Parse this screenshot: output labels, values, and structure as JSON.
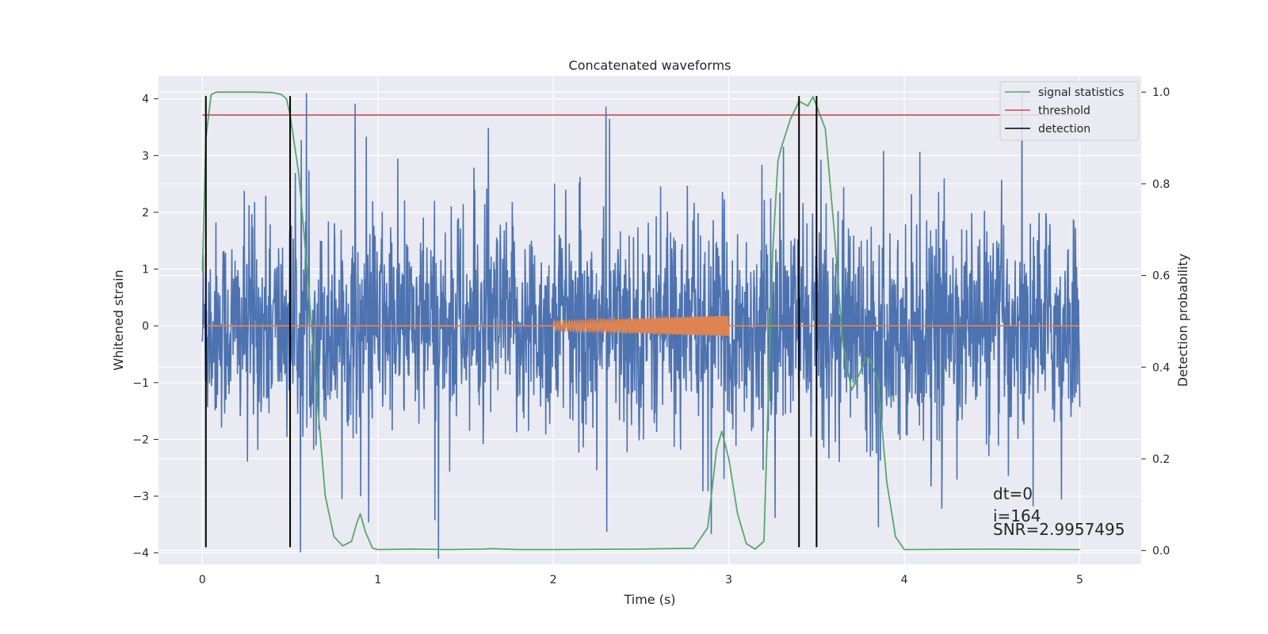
{
  "chart_data": {
    "type": "line",
    "title": "Concatenated waveforms",
    "xlabel": "Time (s)",
    "ylabel": "Whitened strain",
    "y2label": "Detection probability",
    "xlim": [
      -0.25,
      5.35
    ],
    "ylim": [
      -4.2,
      4.4
    ],
    "y2lim": [
      -0.03,
      1.035
    ],
    "x_ticks": [
      0,
      1,
      2,
      3,
      4,
      5
    ],
    "y_ticks": [
      -4,
      -3,
      -2,
      -1,
      0,
      1,
      2,
      3,
      4
    ],
    "y2_ticks": [
      0.0,
      0.2,
      0.4,
      0.6,
      0.8,
      1.0
    ],
    "y2_tick_labels": [
      "0.0",
      "0.2",
      "0.4",
      "0.6",
      "0.8",
      "1.0"
    ],
    "grid": true,
    "legend_position": "top-right",
    "colors": {
      "background": "#eaeaf2",
      "grid": "#ffffff",
      "strain": "#4c72b0",
      "injection": "#dd8452",
      "signal_statistics": "#55a868",
      "threshold": "#c44e52",
      "detection": "#000000"
    },
    "series": [
      {
        "name": "",
        "role": "whitened-strain",
        "description_range": {
          "x": [
            0,
            5
          ],
          "y": [
            -4.1,
            4.1
          ]
        }
      },
      {
        "name": "",
        "role": "injected-waveform",
        "x_range": [
          2.0,
          3.0
        ],
        "amplitude_start": 0.08,
        "amplitude_end": 0.18
      },
      {
        "name": "signal statistics",
        "axis": "right",
        "x": [
          0.0,
          0.02,
          0.05,
          0.08,
          0.1,
          0.2,
          0.3,
          0.4,
          0.45,
          0.48,
          0.5,
          0.55,
          0.6,
          0.65,
          0.7,
          0.75,
          0.8,
          0.85,
          0.88,
          0.9,
          0.93,
          0.97,
          1.0,
          1.2,
          1.4,
          1.6,
          1.65,
          1.8,
          2.0,
          2.5,
          2.8,
          2.88,
          2.93,
          2.96,
          3.0,
          3.05,
          3.1,
          3.15,
          3.2,
          3.25,
          3.28,
          3.3,
          3.35,
          3.4,
          3.45,
          3.48,
          3.5,
          3.55,
          3.6,
          3.65,
          3.7,
          3.75,
          3.78,
          3.8,
          3.85,
          3.9,
          3.95,
          4.0,
          4.5,
          5.0
        ],
        "y": [
          0.61,
          0.9,
          0.995,
          1.0,
          1.0,
          1.0,
          1.0,
          0.999,
          0.995,
          0.985,
          0.95,
          0.82,
          0.6,
          0.35,
          0.12,
          0.03,
          0.01,
          0.02,
          0.06,
          0.08,
          0.04,
          0.005,
          0.002,
          0.003,
          0.002,
          0.003,
          0.004,
          0.002,
          0.002,
          0.003,
          0.005,
          0.05,
          0.22,
          0.26,
          0.2,
          0.08,
          0.015,
          0.003,
          0.02,
          0.65,
          0.85,
          0.88,
          0.94,
          0.98,
          0.97,
          0.99,
          0.97,
          0.92,
          0.7,
          0.45,
          0.35,
          0.39,
          0.42,
          0.42,
          0.37,
          0.15,
          0.03,
          0.002,
          0.003,
          0.002
        ]
      },
      {
        "name": "threshold",
        "axis": "right",
        "x": [
          0,
          5
        ],
        "y": [
          0.95,
          0.95
        ]
      },
      {
        "name": "detection",
        "axis": "left",
        "type": "vlines",
        "x": [
          0.02,
          0.5,
          3.4,
          3.5
        ],
        "ymin": -3.9,
        "ymax": 4.05
      }
    ],
    "legend": [
      "signal statistics",
      "threshold",
      "detection"
    ],
    "annotations": [
      "dt=0",
      "i=164",
      "SNR=2.9957495"
    ]
  }
}
